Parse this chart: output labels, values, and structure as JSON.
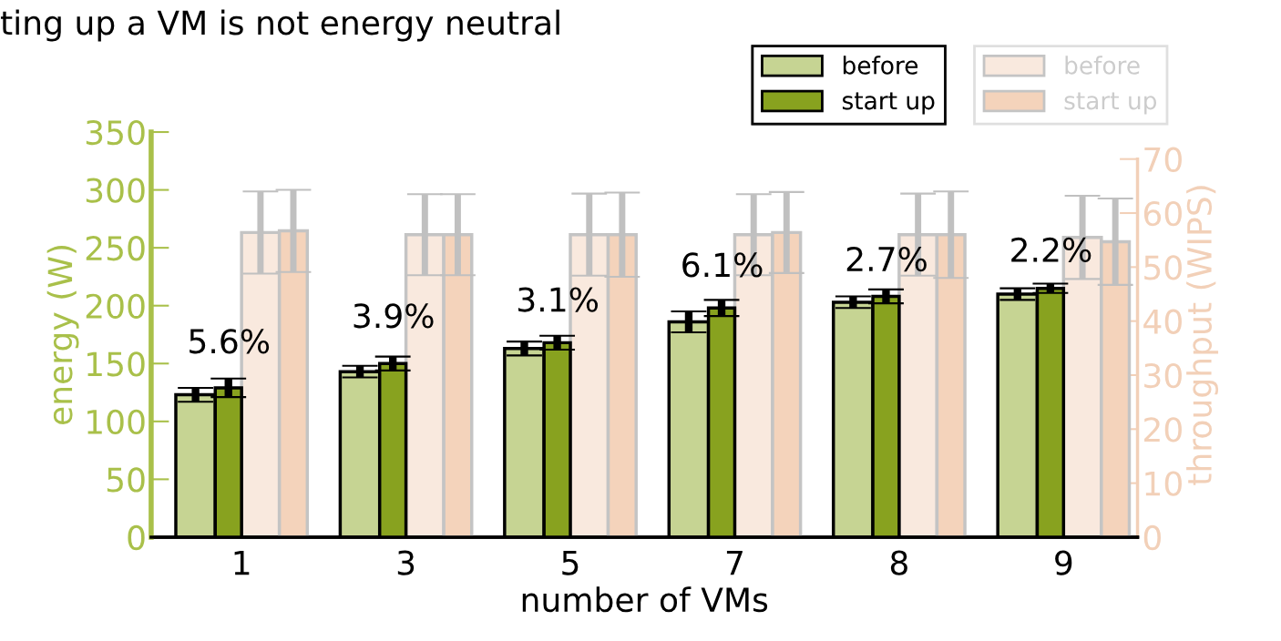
{
  "chart_data": {
    "type": "bar",
    "title": "ting up a VM is not energy neutral",
    "xlabel": "number of VMs",
    "ylabel": "energy (W)",
    "y2label": "throughput (WIPS)",
    "categories": [
      "1",
      "3",
      "5",
      "7",
      "8",
      "9"
    ],
    "series": [
      {
        "name": "before",
        "color": "#c6d493",
        "axis": "y",
        "values": [
          123,
          143,
          163,
          186,
          203,
          210
        ],
        "errors": [
          6,
          5,
          6,
          9,
          5,
          5
        ]
      },
      {
        "name": "start up",
        "color": "#88a21f",
        "axis": "y",
        "values": [
          129,
          150,
          168,
          198,
          208,
          215
        ],
        "errors": [
          8,
          6,
          6,
          7,
          6,
          4
        ]
      },
      {
        "name": "before",
        "color": "#f9e9de",
        "axis": "y2",
        "values": [
          56.4,
          56,
          56,
          56,
          56,
          55.5
        ],
        "errors": [
          7.6,
          7.5,
          7.6,
          7.5,
          7.6,
          7.7
        ]
      },
      {
        "name": "start up",
        "color": "#f4d3bb",
        "axis": "y2",
        "values": [
          56.7,
          56,
          56,
          56.4,
          56,
          54.7
        ],
        "errors": [
          7.6,
          7.5,
          7.8,
          7.5,
          8,
          8
        ]
      }
    ],
    "annotations": [
      {
        "text": "5.6%",
        "x": "1",
        "y": 153
      },
      {
        "text": "3.9%",
        "x": "3",
        "y": 175
      },
      {
        "text": "3.1%",
        "x": "5",
        "y": 189
      },
      {
        "text": "6.1%",
        "x": "7",
        "y": 219
      },
      {
        "text": "2.7%",
        "x": "8",
        "y": 224
      },
      {
        "text": "2.2%",
        "x": "9",
        "y": 232
      }
    ],
    "ylim": [
      0,
      350
    ],
    "yticks": [
      0,
      50,
      100,
      150,
      200,
      250,
      300,
      350
    ],
    "y2lim": [
      0,
      75
    ],
    "y2ticks": [
      0,
      10,
      20,
      30,
      40,
      50,
      60,
      70
    ],
    "grid": false,
    "legend": "top right"
  }
}
